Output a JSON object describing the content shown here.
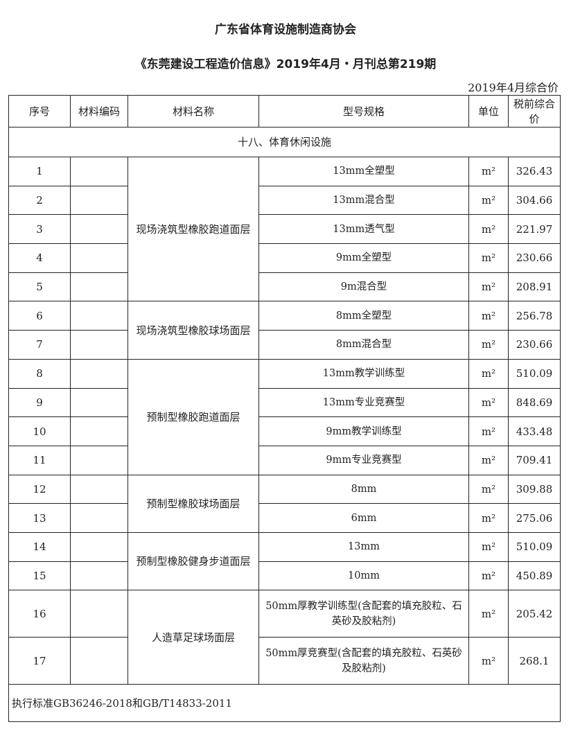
{
  "title": "广东省体育设施制造商协会",
  "subtitle": "《东莞建设工程造价信息》2019年4月・月刊总第219期",
  "price_note": "2019年4月综合价",
  "table": {
    "headers": [
      "序号",
      "材料编码",
      "材料名称",
      "型号规格",
      "单位",
      "税前综合价"
    ],
    "section": "十八、体育休闲设施",
    "groups": [
      {
        "name": "现场浇筑型橡胶跑道面层",
        "rows": [
          {
            "no": "1",
            "code": "",
            "spec": "13mm全塑型",
            "unit": "m²",
            "price": "326.43"
          },
          {
            "no": "2",
            "code": "",
            "spec": "13mm混合型",
            "unit": "m²",
            "price": "304.66"
          },
          {
            "no": "3",
            "code": "",
            "spec": "13mm透气型",
            "unit": "m²",
            "price": "221.97"
          },
          {
            "no": "4",
            "code": "",
            "spec": "9mm全塑型",
            "unit": "m²",
            "price": "230.66"
          },
          {
            "no": "5",
            "code": "",
            "spec": "9m混合型",
            "unit": "m²",
            "price": "208.91"
          }
        ]
      },
      {
        "name": "现场浇筑型橡胶球场面层",
        "rows": [
          {
            "no": "6",
            "code": "",
            "spec": "8mm全塑型",
            "unit": "m²",
            "price": "256.78"
          },
          {
            "no": "7",
            "code": "",
            "spec": "8mm混合型",
            "unit": "m²",
            "price": "230.66"
          }
        ]
      },
      {
        "name": "预制型橡胶跑道面层",
        "rows": [
          {
            "no": "8",
            "code": "",
            "spec": "13mm教学训练型",
            "unit": "m²",
            "price": "510.09"
          },
          {
            "no": "9",
            "code": "",
            "spec": "13mm专业竞赛型",
            "unit": "m²",
            "price": "848.69"
          },
          {
            "no": "10",
            "code": "",
            "spec": "9mm教学训练型",
            "unit": "m²",
            "price": "433.48"
          },
          {
            "no": "11",
            "code": "",
            "spec": "9mm专业竞赛型",
            "unit": "m²",
            "price": "709.41"
          }
        ]
      },
      {
        "name": "预制型橡胶球场面层",
        "rows": [
          {
            "no": "12",
            "code": "",
            "spec": "8mm",
            "unit": "m²",
            "price": "309.88"
          },
          {
            "no": "13",
            "code": "",
            "spec": "6mm",
            "unit": "m²",
            "price": "275.06"
          }
        ]
      },
      {
        "name": "预制型橡胶健身步道面层",
        "rows": [
          {
            "no": "14",
            "code": "",
            "spec": "13mm",
            "unit": "m²",
            "price": "510.09"
          },
          {
            "no": "15",
            "code": "",
            "spec": "10mm",
            "unit": "m²",
            "price": "450.89"
          }
        ]
      },
      {
        "name": "人造草足球场面层",
        "rows": [
          {
            "no": "16",
            "code": "",
            "spec": "50mm厚教学训练型(含配套的填充胶粒、石英砂及胶粘剂)",
            "unit": "m²",
            "price": "205.42"
          },
          {
            "no": "17",
            "code": "",
            "spec": "50mm厚竞赛型(含配套的填充胶粒、石英砂及胶粘剂)",
            "unit": "m²",
            "price": "268.1"
          }
        ]
      }
    ],
    "footer_note": "执行标准GB36246-2018和GB/T14833-2011"
  }
}
